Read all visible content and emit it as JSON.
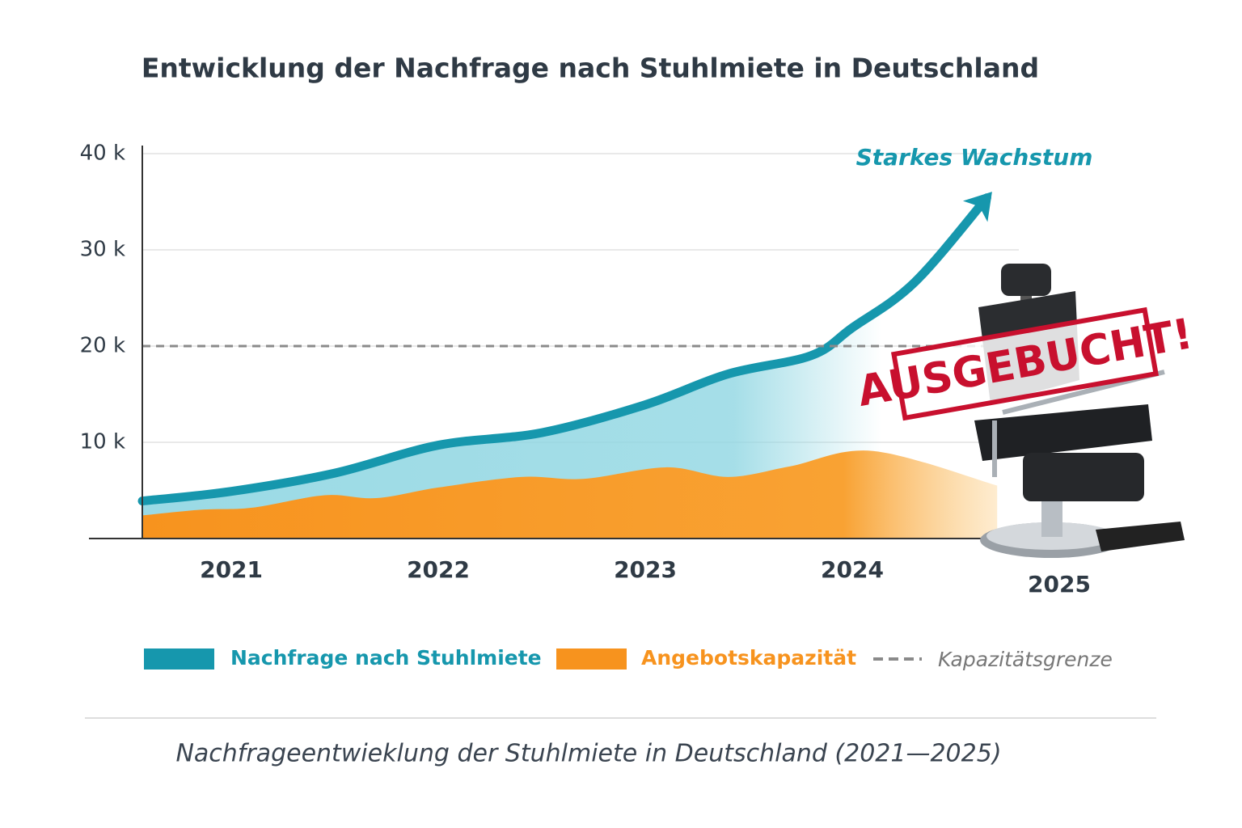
{
  "chart_data": {
    "type": "area",
    "title": "Entwicklung der Nachfrage nach Stuhlmiete in Deutschland",
    "series": [
      {
        "name": "Nachfrage nach Stuhlmiete",
        "color": "#1697ad",
        "x": [
          2020.57,
          2021,
          2021.5,
          2022,
          2022.5,
          2023,
          2023.4,
          2023.8,
          2024,
          2024.3,
          2024.65
        ],
        "values": [
          3900,
          4900,
          6800,
          9700,
          11000,
          13900,
          17100,
          19000,
          21900,
          26600,
          35400
        ]
      },
      {
        "name": "Angebotskapazität",
        "color": "#f7931e",
        "x": [
          2020.57,
          2020.86,
          2021.1,
          2021.45,
          2021.7,
          2022,
          2022.4,
          2022.7,
          2023.1,
          2023.4,
          2023.7,
          2024.1,
          2024.7
        ],
        "values": [
          2400,
          3000,
          3200,
          4500,
          4200,
          5300,
          6400,
          6200,
          7400,
          6400,
          7500,
          9100,
          5500
        ]
      }
    ],
    "capacity": {
      "name": "Kapazitätsgrenze",
      "value": 20000,
      "color": "#8a8a8a"
    },
    "xlim": [
      2020.57,
      2025
    ],
    "xticks": [
      2021,
      2022,
      2023,
      2024,
      2025
    ],
    "ylim": [
      0,
      40000
    ],
    "yticks": [
      {
        "value": 10000,
        "label": "10 k"
      },
      {
        "value": 20000,
        "label": "20 k"
      },
      {
        "value": 30000,
        "label": "30 k"
      },
      {
        "value": 40000,
        "label": "40 k"
      }
    ],
    "grid": true,
    "annotations": [
      "Starkes Wachstum",
      "AUSGEBUCHT!"
    ],
    "caption": "Nachfrageentwieklung der Stuhlmiete in Deutschland (2021—2025)"
  }
}
